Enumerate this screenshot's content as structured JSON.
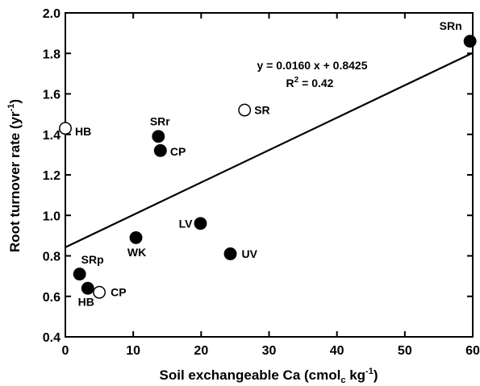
{
  "chart_data": {
    "type": "scatter",
    "title": "",
    "xlabel": {
      "main": "Soil exchangeable Ca (cmol",
      "sub": "c",
      "tail": " kg",
      "sup": "-1",
      "close": ")"
    },
    "ylabel": {
      "main": "Root turnover rate (yr",
      "sup": "-1",
      "close": ")"
    },
    "xlim": [
      0,
      60
    ],
    "ylim": [
      0.4,
      2.0
    ],
    "xticks": [
      "0",
      "10",
      "20",
      "30",
      "40",
      "50",
      "60"
    ],
    "yticks": [
      "0.4",
      "0.6",
      "0.8",
      "1.0",
      "1.2",
      "1.4",
      "1.6",
      "1.8",
      "2.0"
    ],
    "grid": false,
    "points": [
      {
        "label": "SRn",
        "x": 59.6,
        "y": 1.86,
        "filled": true
      },
      {
        "label": "SR",
        "x": 26.4,
        "y": 1.52,
        "filled": false
      },
      {
        "label": "HB",
        "x": 0.0,
        "y": 1.43,
        "filled": false
      },
      {
        "label": "SRr",
        "x": 13.7,
        "y": 1.39,
        "filled": true
      },
      {
        "label": "CP",
        "x": 14.0,
        "y": 1.32,
        "filled": true
      },
      {
        "label": "LV",
        "x": 19.9,
        "y": 0.96,
        "filled": true
      },
      {
        "label": "WK",
        "x": 10.4,
        "y": 0.89,
        "filled": true
      },
      {
        "label": "UV",
        "x": 24.3,
        "y": 0.81,
        "filled": true
      },
      {
        "label": "SRp",
        "x": 2.1,
        "y": 0.71,
        "filled": true
      },
      {
        "label": "HB",
        "x": 3.3,
        "y": 0.64,
        "filled": true
      },
      {
        "label": "CP",
        "x": 5.0,
        "y": 0.62,
        "filled": false
      }
    ],
    "regression": {
      "slope": 0.016,
      "intercept": 0.8425,
      "equation": "y = 0.0160 x + 0.8425",
      "r2_prefix": "R",
      "r2_sup": "2",
      "r2_value": " = 0.42"
    }
  }
}
